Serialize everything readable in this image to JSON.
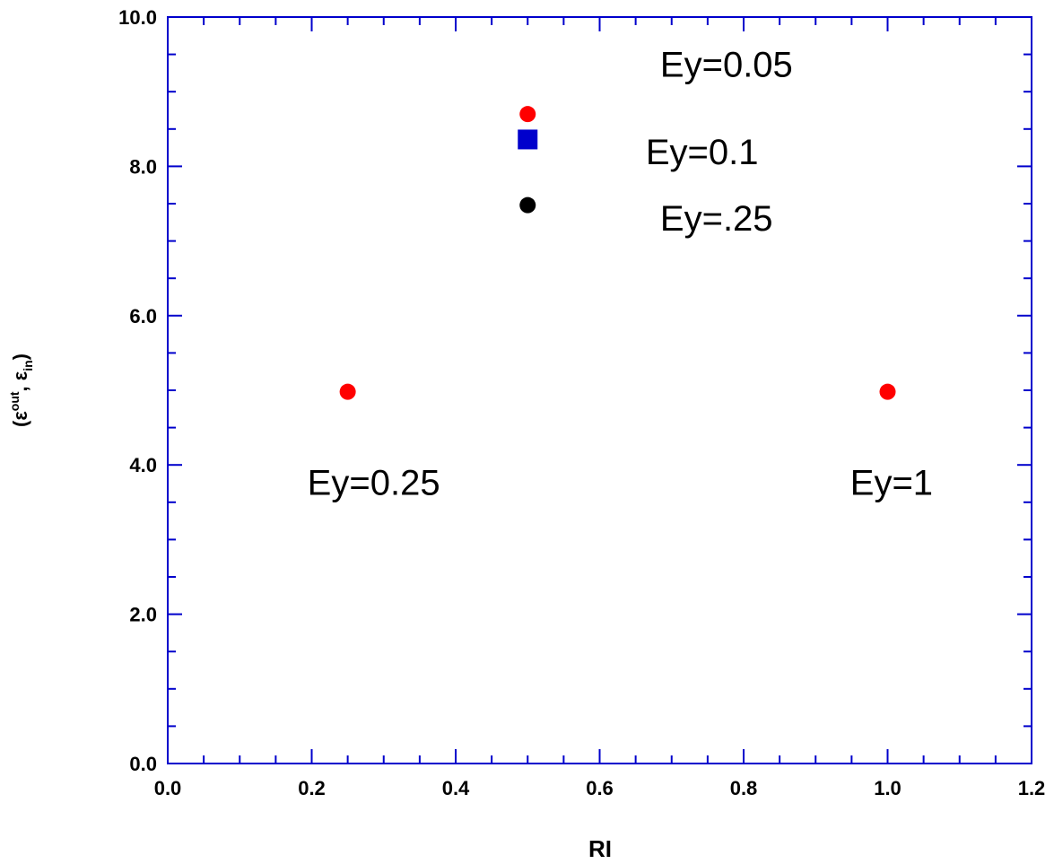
{
  "chart_data": {
    "type": "scatter",
    "title": "",
    "xlabel": "RI",
    "ylabel": "(εout, εin)",
    "ylabel_parts": {
      "open": "(",
      "eps1": "ε",
      "sup": "out",
      "comma": ", ",
      "eps2": "ε",
      "sub": "in",
      "close": ")"
    },
    "xlim": [
      0.0,
      1.2
    ],
    "ylim": [
      0.0,
      10.0
    ],
    "x_ticks": [
      "0.0",
      "0.2",
      "0.4",
      "0.6",
      "0.8",
      "1.0",
      "1.2"
    ],
    "y_ticks": [
      "0.0",
      "2.0",
      "4.0",
      "6.0",
      "8.0",
      "10.0"
    ],
    "grid": false,
    "series": [
      {
        "color": "#ff0000",
        "marker": "circle",
        "points": [
          {
            "x": 0.25,
            "y": 4.98
          },
          {
            "x": 0.5,
            "y": 8.7
          },
          {
            "x": 1.0,
            "y": 4.98
          }
        ]
      },
      {
        "color": "#0000cc",
        "marker": "square",
        "points": [
          {
            "x": 0.5,
            "y": 8.36
          }
        ]
      },
      {
        "color": "#000000",
        "marker": "circle",
        "points": [
          {
            "x": 0.5,
            "y": 7.48
          }
        ]
      }
    ],
    "annotations": [
      {
        "text": "Ey=0.05",
        "x": 0.684,
        "y": 9.2
      },
      {
        "text": "Ey=0.1",
        "x": 0.664,
        "y": 8.03
      },
      {
        "text": "Ey=.25",
        "x": 0.684,
        "y": 7.14
      },
      {
        "text": "Ey=0.25",
        "x": 0.194,
        "y": 3.6
      },
      {
        "text": "Ey=1",
        "x": 0.948,
        "y": 3.6
      }
    ],
    "colors": {
      "axis": "#0000cc",
      "text": "#000000"
    }
  }
}
